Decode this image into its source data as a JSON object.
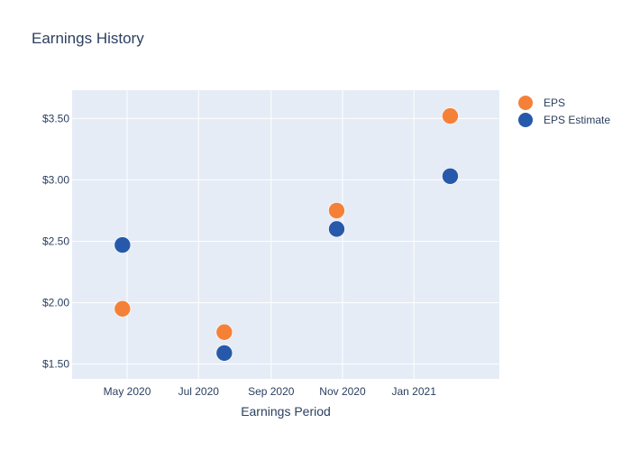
{
  "chart_data": {
    "type": "scatter",
    "title": "Earnings History",
    "xlabel": "Earnings Period",
    "ylabel": "",
    "x_type": "date",
    "xlim": [
      "2020-03-15",
      "2021-03-15"
    ],
    "ylim": [
      1.38,
      3.73
    ],
    "x_ticks": [
      {
        "date": "2020-05-01",
        "label": "May 2020"
      },
      {
        "date": "2020-07-01",
        "label": "Jul 2020"
      },
      {
        "date": "2020-09-01",
        "label": "Sep 2020"
      },
      {
        "date": "2020-11-01",
        "label": "Nov 2020"
      },
      {
        "date": "2021-01-01",
        "label": "Jan 2021"
      }
    ],
    "y_ticks": [
      {
        "value": 1.5,
        "label": "$1.50"
      },
      {
        "value": 2.0,
        "label": "$2.00"
      },
      {
        "value": 2.5,
        "label": "$2.50"
      },
      {
        "value": 3.0,
        "label": "$3.00"
      },
      {
        "value": 3.5,
        "label": "$3.50"
      }
    ],
    "grid": true,
    "legend_position": "top-right",
    "series": [
      {
        "name": "EPS",
        "color": "#f58138",
        "points": [
          {
            "x": "2020-04-27",
            "y": 1.95
          },
          {
            "x": "2020-07-23",
            "y": 1.76
          },
          {
            "x": "2020-10-27",
            "y": 2.75
          },
          {
            "x": "2021-02-01",
            "y": 3.52
          }
        ]
      },
      {
        "name": "EPS Estimate",
        "color": "#2759ab",
        "points": [
          {
            "x": "2020-04-27",
            "y": 2.47
          },
          {
            "x": "2020-07-23",
            "y": 1.59
          },
          {
            "x": "2020-10-27",
            "y": 2.6
          },
          {
            "x": "2021-02-01",
            "y": 3.03
          }
        ]
      }
    ]
  }
}
